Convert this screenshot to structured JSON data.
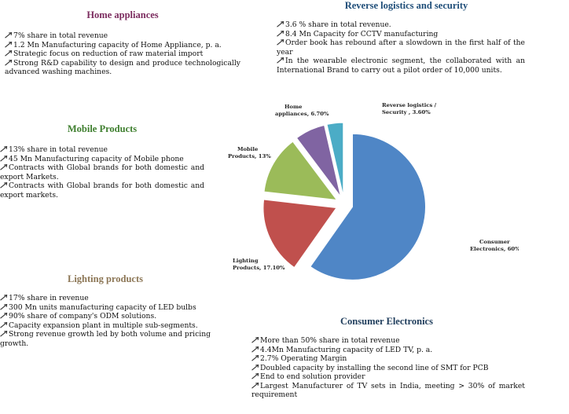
{
  "colors": {
    "home_heading": "#7b2b5e",
    "reverse_heading": "#1f4e79",
    "mobile_heading": "#3f7f2f",
    "lighting_heading": "#8c7655",
    "consumer_heading": "#1f3d5c"
  },
  "sections": {
    "home": {
      "title": "Home appliances",
      "bullets": [
        "7% share in total revenue",
        "1.2 Mn Manufacturing capacity of Home Appliance, p. a.",
        "Strategic focus on reduction of raw material import",
        "Strong R&D capability to design and produce technologically advanced washing machines."
      ]
    },
    "reverse": {
      "title": "Reverse logistics and security",
      "bullets": [
        "3.6 % share in total revenue.",
        "8.4 Mn Capacity for CCTV manufacturing",
        "Order book has rebound after a slowdown in the first half of the year",
        "In the wearable electronic segment, the collaborated with an International Brand to carry out a pilot order of 10,000 units."
      ]
    },
    "mobile": {
      "title": "Mobile Products",
      "bullets": [
        "13% share in total revenue",
        "45 Mn Manufacturing capacity of Mobile phone",
        "Contracts with Global brands for both domestic and export Markets.",
        "Contracts with Global brands for both domestic and export markets."
      ]
    },
    "lighting": {
      "title": "Lighting products",
      "bullets": [
        "17% share in revenue",
        "300 Mn units manufacturing capacity of LED bulbs",
        "90% share of company's ODM solutions.",
        "Capacity expansion plant in multiple sub-segments.",
        "Strong revenue growth led by both volume and pricing growth."
      ]
    },
    "consumer": {
      "title": "Consumer Electronics",
      "bullets": [
        "More than 50% share in total revenue",
        "4.4Mn Manufacturing capacity of LED TV, p. a.",
        "2.7% Operating Margin",
        "Doubled capacity by installing the second line of SMT for PCB",
        "End to end solution provider",
        "Largest Manufacturer of TV sets in India, meeting > 30% of market requirement"
      ]
    }
  },
  "chart_data": {
    "type": "pie",
    "start_angle_deg": 0,
    "slices": [
      {
        "label_lines": [
          "Consumer",
          "Electronics, 60%"
        ],
        "value": 60,
        "color": "#4f86c6"
      },
      {
        "label_lines": [
          "Lighting",
          "Products, 17.10%"
        ],
        "value": 17.1,
        "color": "#c0504d"
      },
      {
        "label_lines": [
          "Mobile",
          "Products, 13%"
        ],
        "value": 13,
        "color": "#9bbb59"
      },
      {
        "label_lines": [
          "Home",
          "appliances, 6.70%"
        ],
        "value": 6.7,
        "color": "#8064a2"
      },
      {
        "label_lines": [
          "Reverse logistics /",
          "Security , 3.60%"
        ],
        "value": 3.6,
        "color": "#4bacc6"
      }
    ]
  }
}
